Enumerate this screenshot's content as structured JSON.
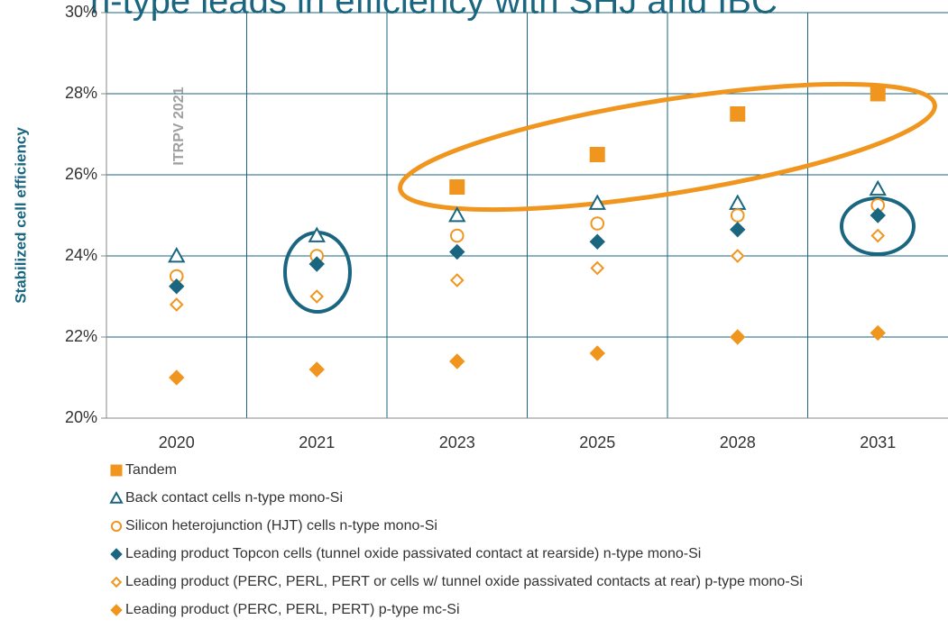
{
  "chart_data": {
    "type": "scatter",
    "title": "n-type leads in efficiency with SHJ and IBC",
    "y_label": "Stabilized  cell efficiency",
    "annotation": "ITRPV 2021",
    "categories": [
      "2020",
      "2021",
      "2023",
      "2025",
      "2028",
      "2031"
    ],
    "ylim": [
      20,
      30
    ],
    "yticks": [
      {
        "value": 20,
        "label": "20%"
      },
      {
        "value": 22,
        "label": "22%"
      },
      {
        "value": 24,
        "label": "24%"
      },
      {
        "value": 26,
        "label": "26%"
      },
      {
        "value": 28,
        "label": "28%"
      },
      {
        "value": 30,
        "label": "30%"
      }
    ],
    "grid": true,
    "series": [
      {
        "name": "Tandem",
        "color": "#f0961e",
        "marker": "square",
        "filled": true,
        "values": [
          null,
          null,
          25.7,
          26.5,
          27.5,
          28.0
        ]
      },
      {
        "name": "Back contact cells n-type mono-Si",
        "color": "#1a6680",
        "marker": "triangle",
        "filled": false,
        "values": [
          24.0,
          24.5,
          25.0,
          25.3,
          25.3,
          25.65
        ]
      },
      {
        "name": "Silicon heterojunction (HJT) cells n-type mono-Si",
        "color": "#f0961e",
        "marker": "circle",
        "filled": false,
        "values": [
          23.5,
          24.0,
          24.5,
          24.8,
          25.0,
          25.25
        ]
      },
      {
        "name": "Leading product Topcon cells (tunnel oxide passivated contact at rearside) n-type mono-Si",
        "color": "#1a6680",
        "marker": "diamond",
        "filled": true,
        "values": [
          23.25,
          23.8,
          24.1,
          24.35,
          24.65,
          25.0
        ]
      },
      {
        "name": "Leading product (PERC, PERL, PERT or cells w/ tunnel oxide passivated contacts at rear) p-type mono-Si",
        "color": "#f0961e",
        "marker": "diamond",
        "filled": false,
        "values": [
          22.8,
          23.0,
          23.4,
          23.7,
          24.0,
          24.5
        ]
      },
      {
        "name": "Leading product (PERC, PERL, PERT) p-type mc-Si",
        "color": "#f0961e",
        "marker": "diamond",
        "filled": true,
        "values": [
          21.0,
          21.2,
          21.4,
          21.6,
          22.0,
          22.1
        ]
      }
    ]
  }
}
